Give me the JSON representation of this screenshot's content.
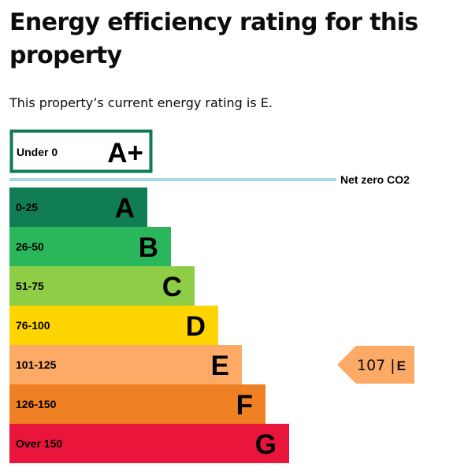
{
  "page": {
    "title": "Energy efficiency rating for this property",
    "intro": "This property’s current energy rating is E."
  },
  "chart_data": {
    "type": "bar",
    "title": "",
    "top_band": {
      "range": "Under 0",
      "letter": "A+",
      "color": "#0e7a53"
    },
    "net_zero_label": "Net zero CO2",
    "net_zero_line_color": "#a8d8e8",
    "bands": [
      {
        "range": "0-25",
        "letter": "A",
        "color": "#117d55",
        "text_color": "#000000",
        "length": 1
      },
      {
        "range": "26-50",
        "letter": "B",
        "color": "#2ab75c",
        "text_color": "#000000",
        "length": 2
      },
      {
        "range": "51-75",
        "letter": "C",
        "color": "#8dce46",
        "text_color": "#000000",
        "length": 3
      },
      {
        "range": "76-100",
        "letter": "D",
        "color": "#ffd500",
        "text_color": "#000000",
        "length": 4
      },
      {
        "range": "101-125",
        "letter": "E",
        "color": "#fcaa65",
        "text_color": "#000000",
        "length": 5
      },
      {
        "range": "126-150",
        "letter": "F",
        "color": "#ef8023",
        "text_color": "#000000",
        "length": 6
      },
      {
        "range": "Over 150",
        "letter": "G",
        "color": "#e9153b",
        "text_color": "#000000",
        "length": 7
      }
    ],
    "current": {
      "score": "107",
      "separator": "|",
      "letter": "E",
      "band_index": 4,
      "color": "#fcaa65"
    }
  }
}
